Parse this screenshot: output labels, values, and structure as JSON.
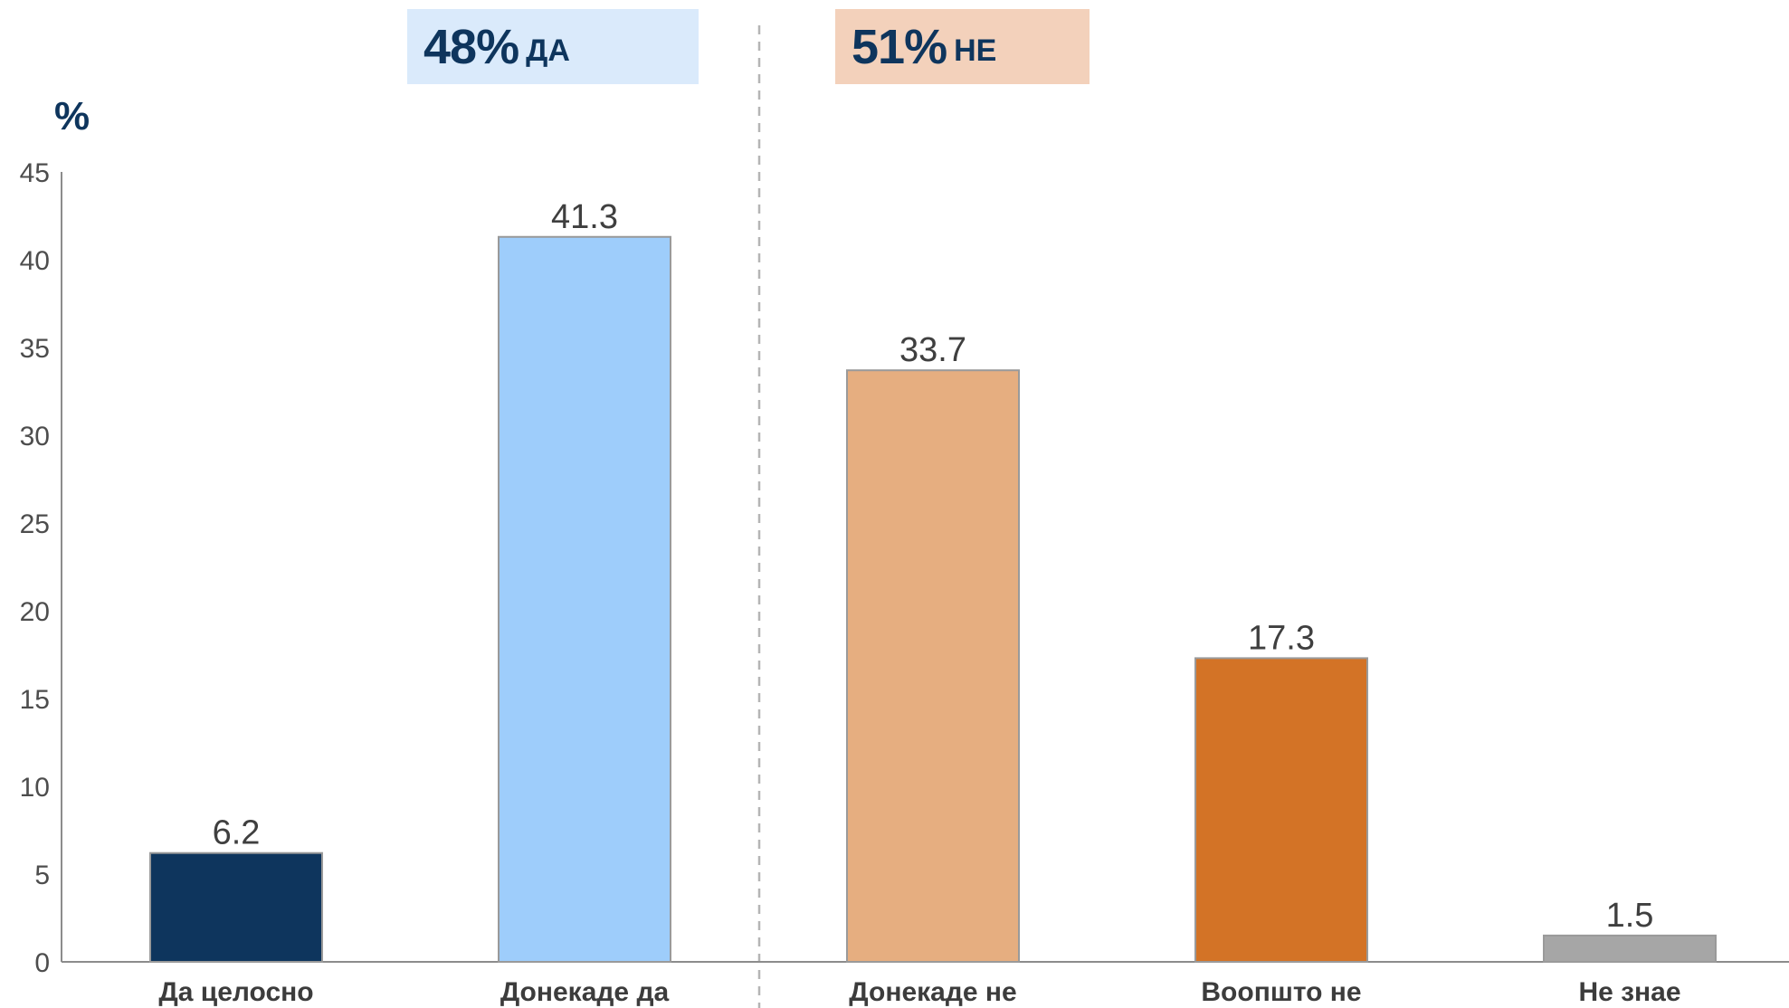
{
  "summary": {
    "yes": {
      "percent": "48%",
      "label": "ДА",
      "color": "#daeafb"
    },
    "no": {
      "percent": "51%",
      "label": "НЕ",
      "color": "#f3d1bb"
    }
  },
  "chart_data": {
    "type": "bar",
    "ylabel": "%",
    "ylim": [
      0,
      45
    ],
    "yticks": [
      0,
      5,
      10,
      15,
      20,
      25,
      30,
      35,
      40,
      45
    ],
    "grid": false,
    "categories": [
      "Да целосно",
      "Донекаде да",
      "Донекаде не",
      "Воопшто не",
      "Не знае"
    ],
    "values": [
      6.2,
      41.3,
      33.7,
      17.3,
      1.5
    ],
    "value_labels": [
      "6.2",
      "41.3",
      "33.7",
      "17.3",
      "1.5"
    ],
    "colors": [
      "#0e355d",
      "#9ecdfb",
      "#e6ae80",
      "#d37326",
      "#a6a6a6"
    ],
    "divider_after_category": 2
  }
}
